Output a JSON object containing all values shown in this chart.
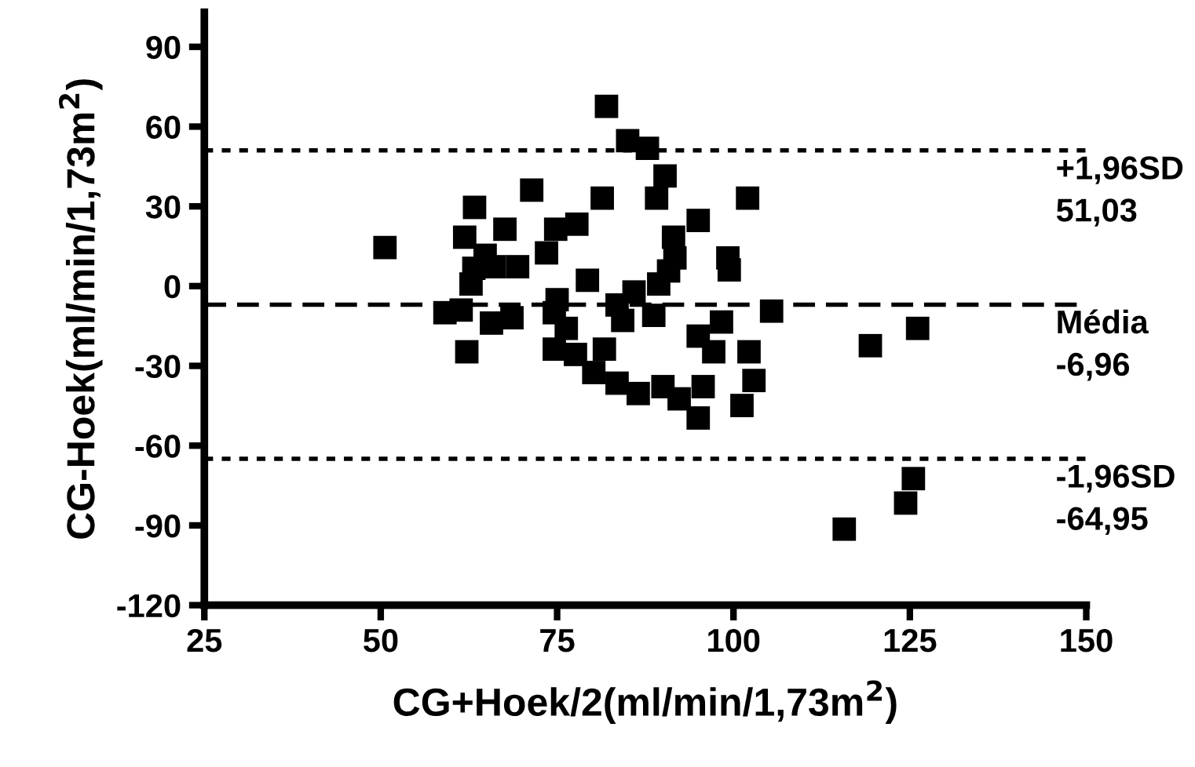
{
  "chart_data": {
    "type": "scatter",
    "xlabel": "CG+Hoek/2(ml/min/1,73m$^{2}$)",
    "ylabel": "CG-Hoek(ml/min/1,73m$^{2}$)",
    "x": [
      50.6,
      85.0,
      87.8,
      90.3,
      89.1,
      71.4,
      81.4,
      102.0,
      63.3,
      67.6,
      61.9,
      74.8,
      77.8,
      95.0,
      91.5,
      73.5,
      64.8,
      91.7,
      99.2,
      99.4,
      63.2,
      66.1,
      69.4,
      62.8,
      79.3,
      90.8,
      89.4,
      85.9,
      83.5,
      75.0,
      59.1,
      61.4,
      65.7,
      68.6,
      74.6,
      84.3,
      88.7,
      105.4,
      98.3,
      95.0,
      97.2,
      62.2,
      74.6,
      77.6,
      81.7,
      76.3,
      102.2,
      102.9,
      80.2,
      83.5,
      86.5,
      90.0,
      92.3,
      95.7,
      95.0,
      101.2,
      126.1,
      119.4,
      125.5,
      124.4,
      115.7,
      82.0
    ],
    "values": [
      14.5,
      54.7,
      51.8,
      41.4,
      33.1,
      36.1,
      33.1,
      33.1,
      29.6,
      21.4,
      18.4,
      21.4,
      23.3,
      24.7,
      18.4,
      12.5,
      11.6,
      10.6,
      10.6,
      6.1,
      6.7,
      7.3,
      7.3,
      0.8,
      2.2,
      5.7,
      0.8,
      -2.2,
      -7.1,
      -5.1,
      -10.0,
      -9.0,
      -13.9,
      -11.9,
      -10.0,
      -12.9,
      -11.0,
      -9.4,
      -13.5,
      -18.8,
      -24.7,
      -24.7,
      -23.7,
      -25.7,
      -23.7,
      -15.9,
      -24.7,
      -35.5,
      -32.5,
      -36.5,
      -40.4,
      -37.8,
      -42.4,
      -37.8,
      -49.6,
      -44.9,
      -15.9,
      -22.4,
      -72.4,
      -81.6,
      -91.4,
      67.6
    ],
    "color": "#000000",
    "marker": "square",
    "xlim": [
      25,
      150
    ],
    "xticks": [
      25,
      50,
      75,
      100,
      125,
      150
    ],
    "ylim": [
      -120,
      103
    ],
    "yticks": [
      -120,
      -90,
      -60,
      -30,
      0,
      30,
      60,
      90
    ],
    "ref_lines": [
      {
        "axis": "y",
        "value": 51.03,
        "label": "+1,96SD\n51,03",
        "line_style": "dotted",
        "color": "#000000"
      },
      {
        "axis": "y",
        "value": -6.96,
        "label": "Média\n-6,96",
        "line_style": "dashed",
        "color": "#000000"
      },
      {
        "axis": "y",
        "value": -64.95,
        "label": "-1,96SD\n-64,95",
        "line_style": "dotted",
        "color": "#000000"
      }
    ],
    "grid": false,
    "legend": false
  }
}
